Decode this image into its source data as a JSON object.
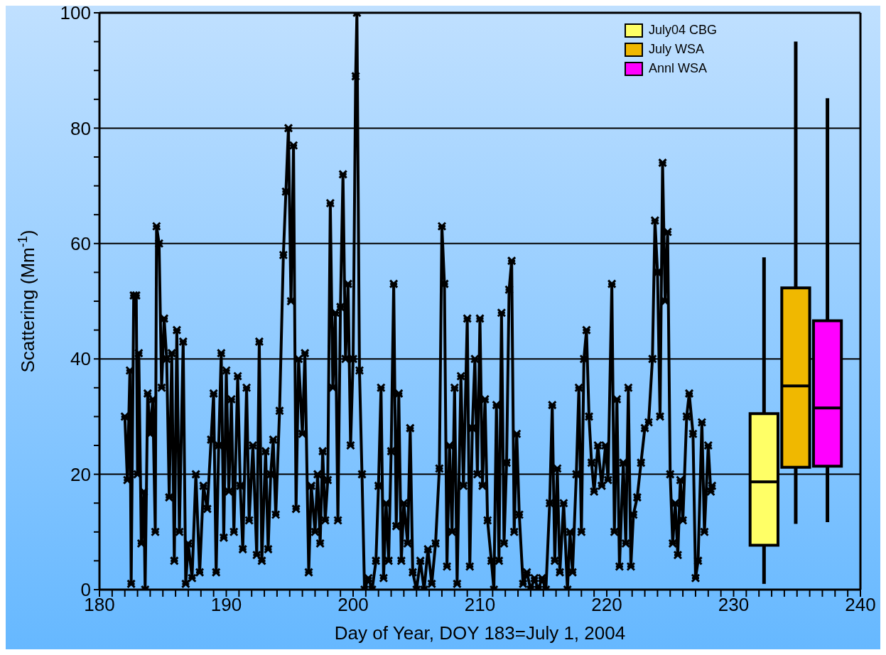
{
  "chart_data": {
    "type": "line",
    "xlabel": "Day of Year, DOY 183=July 1, 2004",
    "ylabel": "Scattering (Mm$^{-1}$)",
    "xlim": [
      180,
      240
    ],
    "ylim": [
      0,
      100
    ],
    "xticks": [
      180,
      {
        "value": 181,
        "label": null
      },
      {
        "value": 182,
        "label": null
      },
      {
        "value": 183,
        "label": null
      },
      {
        "value": 184,
        "label": null
      },
      {
        "value": 185,
        "label": null
      },
      {
        "value": 186,
        "label": null
      },
      {
        "value": 187,
        "label": null
      },
      {
        "value": 188,
        "label": null
      },
      {
        "value": 189,
        "label": null
      },
      190,
      {
        "value": 191,
        "label": null
      },
      {
        "value": 192,
        "label": null
      },
      {
        "value": 193,
        "label": null
      },
      {
        "value": 194,
        "label": null
      },
      {
        "value": 195,
        "label": null
      },
      {
        "value": 196,
        "label": null
      },
      {
        "value": 197,
        "label": null
      },
      {
        "value": 198,
        "label": null
      },
      {
        "value": 199,
        "label": null
      },
      200,
      {
        "value": 201,
        "label": null
      },
      {
        "value": 202,
        "label": null
      },
      {
        "value": 203,
        "label": null
      },
      {
        "value": 204,
        "label": null
      },
      {
        "value": 205,
        "label": null
      },
      {
        "value": 206,
        "label": null
      },
      {
        "value": 207,
        "label": null
      },
      {
        "value": 208,
        "label": null
      },
      {
        "value": 209,
        "label": null
      },
      210,
      {
        "value": 211,
        "label": null
      },
      {
        "value": 212,
        "label": null
      },
      {
        "value": 213,
        "label": null
      },
      {
        "value": 214,
        "label": null
      },
      {
        "value": 215,
        "label": null
      },
      {
        "value": 216,
        "label": null
      },
      {
        "value": 217,
        "label": null
      },
      {
        "value": 218,
        "label": null
      },
      {
        "value": 219,
        "label": null
      },
      220,
      {
        "value": 221,
        "label": null
      },
      {
        "value": 222,
        "label": null
      },
      {
        "value": 223,
        "label": null
      },
      {
        "value": 224,
        "label": null
      },
      {
        "value": 225,
        "label": null
      },
      {
        "value": 226,
        "label": null
      },
      {
        "value": 227,
        "label": null
      },
      {
        "value": 228,
        "label": null
      },
      {
        "value": 229,
        "label": null
      },
      230,
      {
        "value": 231,
        "label": null
      },
      {
        "value": 232,
        "label": null
      },
      {
        "value": 233,
        "label": null
      },
      {
        "value": 234,
        "label": null
      },
      {
        "value": 235,
        "label": null
      },
      {
        "value": 236,
        "label": null
      },
      {
        "value": 237,
        "label": null
      },
      {
        "value": 238,
        "label": null
      },
      {
        "value": 239,
        "label": null
      },
      240
    ],
    "yticks": [
      0,
      {
        "value": 5,
        "label": null
      },
      {
        "value": 10,
        "label": null
      },
      {
        "value": 15,
        "label": null
      },
      20,
      {
        "value": 25,
        "label": null
      },
      {
        "value": 30,
        "label": null
      },
      {
        "value": 35,
        "label": null
      },
      40,
      {
        "value": 45,
        "label": null
      },
      {
        "value": 50,
        "label": null
      },
      {
        "value": 55,
        "label": null
      },
      60,
      {
        "value": 65,
        "label": null
      },
      {
        "value": 70,
        "label": null
      },
      {
        "value": 75,
        "label": null
      },
      80,
      {
        "value": 85,
        "label": null
      },
      {
        "value": 90,
        "label": null
      },
      {
        "value": 95,
        "label": null
      },
      100
    ],
    "grid": "y",
    "legend": "top right",
    "marker": "cross",
    "line_style": "solid",
    "series": [
      {
        "color": "#000000",
        "x": [
          182.0,
          182.2,
          182.4,
          182.5,
          182.7,
          182.9,
          183.0,
          183.1,
          183.3,
          183.5,
          183.6,
          183.8,
          184.0,
          184.2,
          184.4,
          184.5,
          184.7,
          184.9,
          185.1,
          185.3,
          185.5,
          185.7,
          185.9,
          186.1,
          186.3,
          186.6,
          186.8,
          187.0,
          187.3,
          187.6,
          187.9,
          188.2,
          188.5,
          188.8,
          189.0,
          189.2,
          189.4,
          189.6,
          189.8,
          190.0,
          190.2,
          190.4,
          190.6,
          190.9,
          191.1,
          191.3,
          191.6,
          191.8,
          192.1,
          192.4,
          192.6,
          192.8,
          193.1,
          193.3,
          193.5,
          193.7,
          193.9,
          194.2,
          194.5,
          194.7,
          194.9,
          195.1,
          195.3,
          195.5,
          195.7,
          196.0,
          196.2,
          196.5,
          196.7,
          197.0,
          197.2,
          197.4,
          197.6,
          197.8,
          198.0,
          198.2,
          198.4,
          198.6,
          198.8,
          199.0,
          199.2,
          199.4,
          199.6,
          199.8,
          200.0,
          200.2,
          200.3,
          200.5,
          200.7,
          200.9,
          201.2,
          201.5,
          201.8,
          202.0,
          202.2,
          202.4,
          202.6,
          202.8,
          203.0,
          203.2,
          203.4,
          203.6,
          203.8,
          204.0,
          204.3,
          204.5,
          204.7,
          205.0,
          205.3,
          205.6,
          205.9,
          206.2,
          206.5,
          206.8,
          207.0,
          207.2,
          207.4,
          207.6,
          207.8,
          208.0,
          208.2,
          208.5,
          208.7,
          209.0,
          209.2,
          209.4,
          209.6,
          209.8,
          210.0,
          210.2,
          210.4,
          210.6,
          210.9,
          211.1,
          211.3,
          211.5,
          211.7,
          211.9,
          212.1,
          212.3,
          212.5,
          212.7,
          212.9,
          213.1,
          213.4,
          213.7,
          214.0,
          214.3,
          214.6,
          214.9,
          215.2,
          215.5,
          215.7,
          215.9,
          216.1,
          216.3,
          216.6,
          216.9,
          217.1,
          217.3,
          217.6,
          217.8,
          218.0,
          218.2,
          218.4,
          218.6,
          218.8,
          219.0,
          219.3,
          219.6,
          219.9,
          220.1,
          220.4,
          220.6,
          220.8,
          221.0,
          221.3,
          221.5,
          221.7,
          221.9,
          222.1,
          222.4,
          222.7,
          223.0,
          223.3,
          223.6,
          223.8,
          224.0,
          224.2,
          224.4,
          224.6,
          224.8,
          225.0,
          225.2,
          225.4,
          225.6,
          225.8,
          226.0,
          226.3,
          226.5,
          226.8,
          227.0,
          227.2,
          227.5,
          227.7,
          228.0,
          228.2,
          228.3
        ],
        "values": [
          30,
          19,
          38,
          1,
          51,
          51,
          20,
          41,
          8,
          17,
          0,
          34,
          27,
          33,
          10,
          63,
          60,
          35,
          47,
          40,
          16,
          41,
          5,
          45,
          10,
          43,
          1,
          8,
          2,
          20,
          3,
          18,
          14,
          26,
          34,
          3,
          25,
          41,
          9,
          38,
          17,
          33,
          10,
          37,
          18,
          7,
          35,
          12,
          25,
          6,
          43,
          5,
          24,
          7,
          20,
          26,
          13,
          31,
          58,
          69,
          80,
          50,
          77,
          14,
          40,
          27,
          41,
          3,
          18,
          10,
          20,
          8,
          24,
          12,
          19,
          67,
          35,
          48,
          12,
          49,
          72,
          40,
          53,
          25,
          40,
          89,
          100,
          38,
          20,
          0,
          2,
          0,
          5,
          18,
          35,
          2,
          15,
          5,
          24,
          53,
          11,
          34,
          5,
          15,
          8,
          28,
          3,
          0,
          5,
          0,
          7,
          1,
          8,
          21,
          63,
          53,
          4,
          25,
          10,
          35,
          1,
          37,
          18,
          47,
          4,
          28,
          40,
          20,
          47,
          18,
          33,
          12,
          5,
          0,
          32,
          5,
          48,
          8,
          22,
          52,
          57,
          10,
          27,
          13,
          1,
          3,
          0,
          2,
          0,
          2,
          0,
          15,
          32,
          5,
          21,
          3,
          15,
          0,
          10,
          3,
          20,
          35,
          10,
          40,
          45,
          30,
          22,
          17,
          25,
          18,
          25,
          19,
          53,
          10,
          33,
          4,
          22,
          8,
          35,
          4,
          13,
          16,
          22,
          28,
          29,
          40,
          64,
          55,
          30,
          74,
          50,
          62,
          20,
          8,
          15,
          6,
          19,
          12,
          30,
          34,
          27,
          2,
          5,
          29,
          10,
          25,
          17,
          18
        ]
      },
      {
        "type": "box",
        "name": "July04 CBG",
        "color": "#ffff66",
        "x": [
          232.4
        ],
        "boxes": [
          {
            "low": 1,
            "q1": 7.7,
            "median": 18.7,
            "q3": 30.5,
            "high": 57.6
          }
        ]
      },
      {
        "type": "box",
        "name": "July WSA",
        "color": "#f0b800",
        "x": [
          234.9
        ],
        "boxes": [
          {
            "low": 11.4,
            "q1": 21.2,
            "median": 35.3,
            "q3": 52.3,
            "high": 95
          }
        ]
      },
      {
        "type": "box",
        "name": "Annl WSA",
        "color": "#ff00ff",
        "x": [
          237.4
        ],
        "boxes": [
          {
            "low": 11.7,
            "q1": 21.4,
            "median": 31.5,
            "q3": 46.6,
            "high": 85.2
          }
        ]
      }
    ]
  }
}
